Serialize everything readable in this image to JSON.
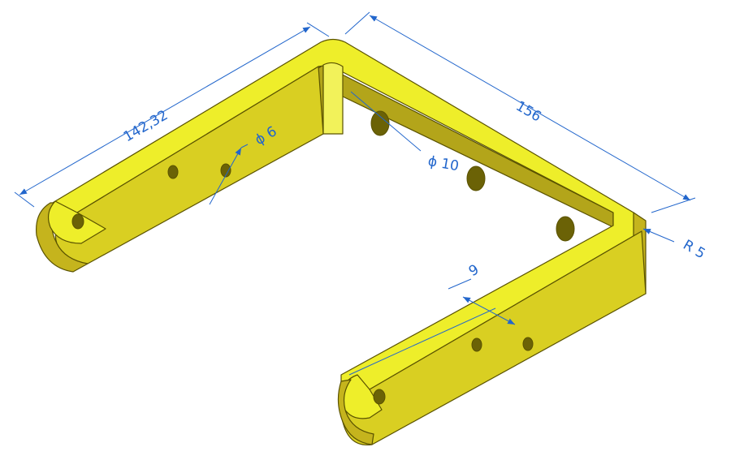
{
  "dimensions": {
    "length_left_arm": "142,32",
    "length_base": "156",
    "hole_small": "ϕ 6",
    "hole_large": "ϕ 10",
    "hole_spacing": "9",
    "bend_radius": "R 5"
  },
  "colors": {
    "part_top": "#eeee2a",
    "part_side": "#c5b41d",
    "part_front": "#d9cf22",
    "part_inner": "#b3a51a",
    "edge": "#5a5200",
    "hole": "#6b6206",
    "dimension": "#2266cc",
    "background": "#ffffff"
  }
}
